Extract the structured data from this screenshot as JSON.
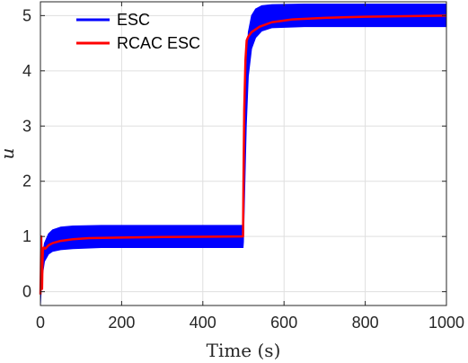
{
  "chart_data": {
    "type": "line",
    "title": "",
    "xlabel": "Time (s)",
    "ylabel": "u",
    "xlim": [
      0,
      1000
    ],
    "ylim": [
      -0.25,
      5.25
    ],
    "xticks": [
      0,
      200,
      400,
      600,
      800,
      1000
    ],
    "yticks": [
      0,
      1,
      2,
      3,
      4,
      5
    ],
    "xtick_labels": [
      "0",
      "200",
      "400",
      "600",
      "800",
      "1000"
    ],
    "ytick_labels": [
      "0",
      "1",
      "2",
      "3",
      "4",
      "5"
    ],
    "grid": true,
    "legend_position": "top-left",
    "series": [
      {
        "name": "ESC",
        "color": "#0000ff",
        "style": "oscillating band",
        "upper": [
          [
            0,
            0.0
          ],
          [
            3,
            0.55
          ],
          [
            10,
            0.88
          ],
          [
            20,
            1.05
          ],
          [
            30,
            1.12
          ],
          [
            50,
            1.17
          ],
          [
            80,
            1.19
          ],
          [
            150,
            1.2
          ],
          [
            300,
            1.2
          ],
          [
            499,
            1.2
          ],
          [
            500,
            1.6
          ],
          [
            503,
            2.8
          ],
          [
            507,
            4.0
          ],
          [
            512,
            4.7
          ],
          [
            520,
            5.0
          ],
          [
            530,
            5.12
          ],
          [
            545,
            5.18
          ],
          [
            570,
            5.2
          ],
          [
            650,
            5.21
          ],
          [
            1000,
            5.21
          ]
        ],
        "lower": [
          [
            0,
            -0.25
          ],
          [
            3,
            0.2
          ],
          [
            10,
            0.55
          ],
          [
            20,
            0.68
          ],
          [
            30,
            0.73
          ],
          [
            50,
            0.76
          ],
          [
            80,
            0.78
          ],
          [
            150,
            0.8
          ],
          [
            300,
            0.8
          ],
          [
            499,
            0.8
          ],
          [
            500,
            0.9
          ],
          [
            503,
            1.8
          ],
          [
            507,
            3.0
          ],
          [
            512,
            3.9
          ],
          [
            520,
            4.4
          ],
          [
            530,
            4.6
          ],
          [
            545,
            4.72
          ],
          [
            570,
            4.78
          ],
          [
            650,
            4.8
          ],
          [
            1000,
            4.8
          ]
        ]
      },
      {
        "name": "RCAC ESC",
        "color": "#ff0000",
        "points": [
          [
            0,
            -0.05
          ],
          [
            1,
            0.4
          ],
          [
            2,
            1.0
          ],
          [
            3,
            0.3
          ],
          [
            4,
            0.05
          ],
          [
            5,
            0.5
          ],
          [
            6,
            0.75
          ],
          [
            8,
            0.8
          ],
          [
            12,
            0.78
          ],
          [
            20,
            0.84
          ],
          [
            30,
            0.88
          ],
          [
            50,
            0.92
          ],
          [
            80,
            0.95
          ],
          [
            120,
            0.97
          ],
          [
            200,
            0.98
          ],
          [
            300,
            0.99
          ],
          [
            400,
            0.995
          ],
          [
            499,
            1.0
          ],
          [
            500,
            1.9
          ],
          [
            502,
            3.3
          ],
          [
            505,
            4.2
          ],
          [
            508,
            4.55
          ],
          [
            512,
            4.62
          ],
          [
            520,
            4.7
          ],
          [
            540,
            4.8
          ],
          [
            570,
            4.88
          ],
          [
            620,
            4.93
          ],
          [
            700,
            4.96
          ],
          [
            800,
            4.98
          ],
          [
            1000,
            5.0
          ]
        ]
      }
    ]
  }
}
